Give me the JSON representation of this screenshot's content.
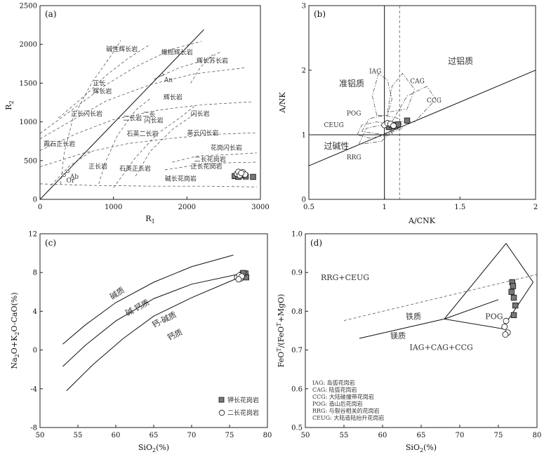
{
  "chart_data": [
    {
      "type": "scatter",
      "panel": "(a)",
      "xlabel": "R1",
      "ylabel": "R2",
      "xlim": [
        0,
        3000
      ],
      "ylim": [
        0,
        2500
      ],
      "xticks": [
        0,
        1000,
        2000,
        3000
      ],
      "yticks": [
        0,
        500,
        1000,
        1500,
        2000,
        2500
      ],
      "field_labels": [
        {
          "text": "碱性辉长岩",
          "x": 900,
          "y": 1910
        },
        {
          "text": "橄榄辉长岩",
          "x": 1650,
          "y": 1870
        },
        {
          "text": "辉长苏长岩",
          "x": 2130,
          "y": 1760
        },
        {
          "text": "正长",
          "x": 720,
          "y": 1470
        },
        {
          "text": "辉长岩",
          "x": 720,
          "y": 1370
        },
        {
          "text": "辉长岩",
          "x": 1680,
          "y": 1290
        },
        {
          "text": "正长闪长岩",
          "x": 420,
          "y": 1080
        },
        {
          "text": "二长岩",
          "x": 1130,
          "y": 1020
        },
        {
          "text": "二长",
          "x": 1400,
          "y": 1070
        },
        {
          "text": "闪长岩",
          "x": 1420,
          "y": 990
        },
        {
          "text": "闪长岩",
          "x": 2050,
          "y": 1080
        },
        {
          "text": "霞石正长岩",
          "x": 50,
          "y": 690
        },
        {
          "text": "石英二长岩",
          "x": 1180,
          "y": 820
        },
        {
          "text": "英云闪长岩",
          "x": 2000,
          "y": 830
        },
        {
          "text": "花岗闪长岩",
          "x": 2320,
          "y": 640
        },
        {
          "text": "正长岩",
          "x": 660,
          "y": 400
        },
        {
          "text": "石英正长岩",
          "x": 1080,
          "y": 370
        },
        {
          "text": "二长花岗岩",
          "x": 2100,
          "y": 490
        },
        {
          "text": "正长花岗岩",
          "x": 2050,
          "y": 400
        },
        {
          "text": "碱长花岗岩",
          "x": 1700,
          "y": 240
        }
      ],
      "mineral_points": [
        {
          "name": "An",
          "x": 1660,
          "y": 1610
        },
        {
          "name": "Ab",
          "x": 380,
          "y": 360
        },
        {
          "name": "Or",
          "x": 330,
          "y": 310
        }
      ],
      "series": [
        {
          "name": "钾长花岗岩",
          "marker": "square",
          "points": [
            [
              2650,
              300
            ],
            [
              2700,
              290
            ],
            [
              2750,
              310
            ],
            [
              2800,
              295
            ],
            [
              2900,
              290
            ]
          ]
        },
        {
          "name": "二长花岗岩",
          "marker": "circle",
          "points": [
            [
              2680,
              330
            ],
            [
              2700,
              355
            ],
            [
              2720,
              310
            ],
            [
              2760,
              350
            ],
            [
              2790,
              320
            ],
            [
              2740,
              340
            ]
          ]
        }
      ]
    },
    {
      "type": "scatter",
      "panel": "(b)",
      "xlabel": "A/CNK",
      "ylabel": "A/NK",
      "xlim": [
        0.5,
        2
      ],
      "ylim": [
        0,
        3
      ],
      "xticks": [
        "0.5",
        "1",
        "1.5",
        "2"
      ],
      "yticks": [
        "0",
        "1",
        "2",
        "3"
      ],
      "field_labels": [
        {
          "text": "过铝质",
          "x": 1.42,
          "y": 2.1
        },
        {
          "text": "准铝质",
          "x": 0.7,
          "y": 1.75
        },
        {
          "text": "过碱性",
          "x": 0.6,
          "y": 0.78
        },
        {
          "text": "IAG",
          "x": 0.9,
          "y": 1.95
        },
        {
          "text": "CAG",
          "x": 1.17,
          "y": 1.8
        },
        {
          "text": "CCG",
          "x": 1.28,
          "y": 1.5
        },
        {
          "text": "POG",
          "x": 0.75,
          "y": 1.3
        },
        {
          "text": "CEUG",
          "x": 0.6,
          "y": 1.12
        },
        {
          "text": "RRG",
          "x": 0.75,
          "y": 0.62
        }
      ],
      "series": [
        {
          "name": "钾长花岗岩",
          "marker": "square",
          "points": [
            [
              1.03,
              1.12
            ],
            [
              1.05,
              1.15
            ],
            [
              1.07,
              1.13
            ],
            [
              1.09,
              1.16
            ],
            [
              1.15,
              1.22
            ]
          ]
        },
        {
          "name": "二长花岗岩",
          "marker": "circle",
          "points": [
            [
              1.0,
              1.15
            ],
            [
              1.02,
              1.18
            ],
            [
              1.04,
              1.17
            ],
            [
              1.06,
              1.14
            ]
          ]
        }
      ]
    },
    {
      "type": "scatter",
      "panel": "(c)",
      "xlabel": "SiO2(%)",
      "ylabel": "Na2O+K2O-CaO(%)",
      "xlim": [
        50,
        80
      ],
      "ylim": [
        -8,
        12
      ],
      "xticks": [
        "50",
        "55",
        "60",
        "65",
        "70",
        "75",
        "80"
      ],
      "yticks": [
        "-8",
        "-4",
        "0",
        "4",
        "8",
        "12"
      ],
      "field_labels": [
        {
          "text": "碱质",
          "x": 59.5,
          "y": 5.2
        },
        {
          "text": "碱-钙质",
          "x": 61.5,
          "y": 3.5
        },
        {
          "text": "钙-碱质",
          "x": 65,
          "y": 2.3
        },
        {
          "text": "钙质",
          "x": 67,
          "y": 1.0
        }
      ],
      "legend": [
        "钾长花岗岩",
        "二长花岗岩"
      ],
      "series": [
        {
          "name": "钾长花岗岩",
          "marker": "square",
          "points": [
            [
              76.7,
              7.8
            ],
            [
              76.9,
              7.6
            ],
            [
              77.1,
              7.9
            ],
            [
              77.2,
              7.5
            ],
            [
              76.8,
              7.95
            ]
          ]
        },
        {
          "name": "二长花岗岩",
          "marker": "circle",
          "points": [
            [
              76.0,
              7.5
            ],
            [
              76.3,
              7.7
            ],
            [
              76.5,
              7.4
            ],
            [
              76.6,
              7.6
            ],
            [
              76.2,
              7.3
            ]
          ]
        }
      ]
    },
    {
      "type": "scatter",
      "panel": "(d)",
      "xlabel": "SiO2(%)",
      "ylabel": "FeOT/(FeOT+MgO)",
      "xlim": [
        50,
        80
      ],
      "ylim": [
        0.5,
        1.0
      ],
      "xticks": [
        "50",
        "55",
        "60",
        "65",
        "70",
        "75",
        "80"
      ],
      "yticks": [
        "0.5",
        "0.6",
        "0.7",
        "0.8",
        "0.9",
        "1.0"
      ],
      "field_labels": [
        {
          "text": "RRG+CEUG",
          "x": 52,
          "y": 0.88
        },
        {
          "text": "铁质",
          "x": 63,
          "y": 0.78
        },
        {
          "text": "镁质",
          "x": 61,
          "y": 0.73
        },
        {
          "text": "POG",
          "x": 73.3,
          "y": 0.78
        },
        {
          "text": "IAG+CAG+CCG",
          "x": 63.5,
          "y": 0.7
        }
      ],
      "abbreviations": [
        "IAG: 岛弧花岗岩",
        "CAG: 陆弧花岗岩",
        "CCG: 大陆碰撞带花岗岩",
        "POG: 造山后花岗岩",
        "RRG: 与裂谷相关的花岗岩",
        "CEUG: 大陆造陆抬升花岗岩"
      ],
      "series": [
        {
          "name": "钾长花岗岩",
          "marker": "square",
          "points": [
            [
              76.8,
              0.875
            ],
            [
              76.9,
              0.865
            ],
            [
              76.7,
              0.85
            ],
            [
              77.0,
              0.835
            ],
            [
              77.2,
              0.815
            ],
            [
              77.0,
              0.79
            ]
          ]
        },
        {
          "name": "二长花岗岩",
          "marker": "circle",
          "points": [
            [
              76.0,
              0.775
            ],
            [
              75.8,
              0.76
            ],
            [
              76.2,
              0.745
            ],
            [
              75.9,
              0.74
            ]
          ]
        }
      ]
    }
  ]
}
